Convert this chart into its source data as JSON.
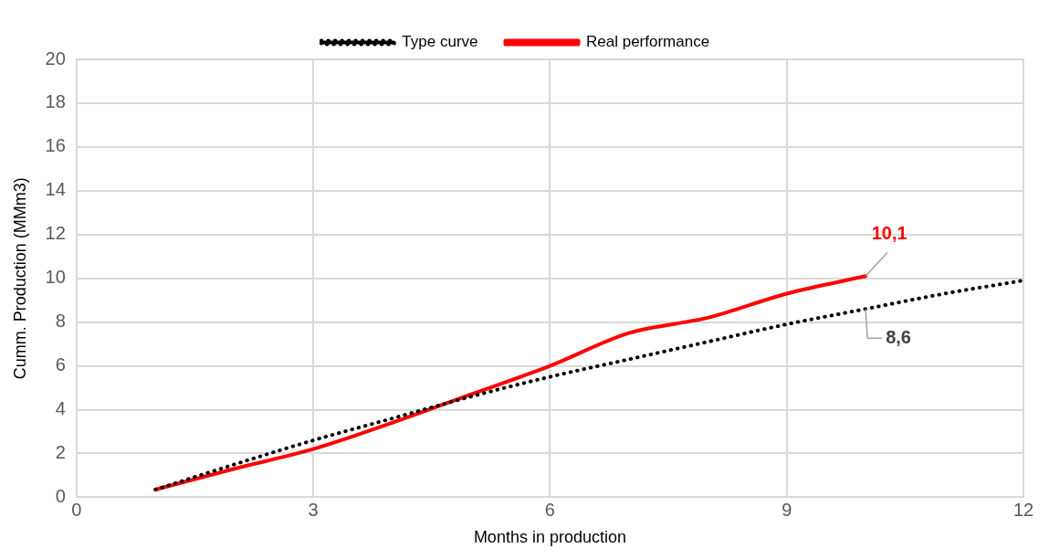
{
  "chart_data": {
    "type": "line",
    "xlabel": "Months in production",
    "ylabel": "Cumm. Production (MMm3)",
    "x": [
      1,
      2,
      3,
      4,
      5,
      6,
      7,
      8,
      9,
      10,
      11,
      12
    ],
    "series": [
      {
        "name": "Real performance",
        "color": "#ff0000",
        "line_style": "solid",
        "values": [
          0.35,
          1.3,
          2.2,
          3.4,
          4.7,
          6.0,
          7.5,
          8.2,
          9.3,
          10.1,
          null,
          null
        ],
        "value_labels": [
          null,
          null,
          null,
          null,
          null,
          null,
          null,
          null,
          null,
          "10,1",
          null,
          null
        ]
      },
      {
        "name": "Type curve",
        "color": "#000000",
        "line_style": "dotted",
        "values": [
          0.35,
          1.5,
          2.6,
          3.6,
          4.6,
          5.5,
          6.3,
          7.1,
          7.9,
          8.6,
          9.3,
          9.9
        ],
        "value_labels": [
          null,
          null,
          null,
          null,
          null,
          null,
          null,
          null,
          null,
          "8,6",
          null,
          null
        ]
      }
    ],
    "xlim": [
      0,
      12
    ],
    "xticks": [
      0,
      3,
      6,
      9,
      12
    ],
    "ylim": [
      0,
      20
    ],
    "yticks": [
      0,
      2,
      4,
      6,
      8,
      10,
      12,
      14,
      16,
      18,
      20
    ],
    "grid": true,
    "legend": "top",
    "marker": "none"
  }
}
